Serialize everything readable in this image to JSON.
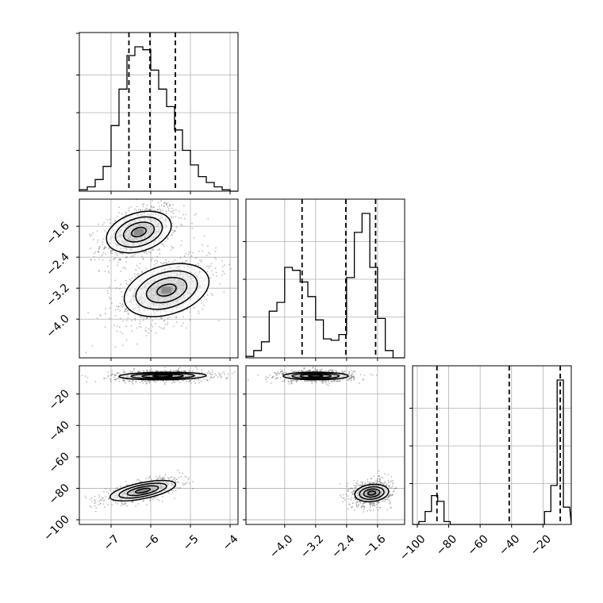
{
  "chart_data": {
    "type": "corner",
    "parameters": [
      {
        "name": "",
        "range": [
          -7.8,
          -3.8
        ],
        "ticks": [
          -7,
          -6,
          -5,
          -4
        ],
        "tick_labels": [
          "−7",
          "−6",
          "−5",
          "−4"
        ],
        "quantiles": [
          -6.55,
          -6.02,
          -5.38
        ]
      },
      {
        "name": "",
        "range": [
          -5.0,
          -0.9
        ],
        "ticks": [
          -4.0,
          -3.2,
          -2.4,
          -1.6
        ],
        "tick_labels": [
          "−4.0",
          "−3.2",
          "−2.4",
          "−1.6"
        ],
        "quantiles": [
          -3.55,
          -2.42,
          -1.65
        ]
      },
      {
        "name": "",
        "range": [
          -103,
          -2
        ],
        "ticks": [
          -100,
          -80,
          -60,
          -40,
          -20
        ],
        "tick_labels": [
          "−100",
          "−80",
          "−60",
          "−40",
          "−20"
        ],
        "quantiles": [
          -87.5,
          -41.5,
          -9.0
        ]
      }
    ],
    "histograms": [
      {
        "param": 0,
        "bin_centers": [
          -7.7,
          -7.5,
          -7.3,
          -7.1,
          -6.9,
          -6.7,
          -6.5,
          -6.3,
          -6.1,
          -5.9,
          -5.7,
          -5.5,
          -5.3,
          -5.1,
          -4.9,
          -4.7,
          -4.5,
          -4.3,
          -4.1,
          -3.9
        ],
        "counts": [
          1,
          3,
          8,
          17,
          45,
          70,
          93,
          99,
          97,
          83,
          70,
          58,
          42,
          28,
          18,
          10,
          6,
          3,
          1,
          0
        ]
      },
      {
        "param": 1,
        "bin_centers": [
          -4.9,
          -4.7,
          -4.5,
          -4.3,
          -4.1,
          -3.9,
          -3.7,
          -3.5,
          -3.3,
          -3.1,
          -2.9,
          -2.7,
          -2.5,
          -2.3,
          -2.1,
          -1.9,
          -1.7,
          -1.5,
          -1.3,
          -1.1
        ],
        "counts": [
          1,
          5,
          11,
          32,
          38,
          62,
          60,
          52,
          42,
          26,
          13,
          12,
          16,
          55,
          86,
          99,
          62,
          27,
          5,
          0
        ]
      },
      {
        "param": 2,
        "bin_centers": [
          -101,
          -97,
          -93,
          -89,
          -85,
          -81,
          -77,
          -73,
          -69,
          -65,
          -61,
          -57,
          -53,
          -49,
          -45,
          -41,
          -37,
          -33,
          -29,
          -25,
          -21,
          -17,
          -13,
          -9,
          -5
        ],
        "counts": [
          0,
          2,
          9,
          20,
          16,
          2,
          0,
          0,
          0,
          0,
          0,
          0,
          0,
          0,
          0,
          0,
          0,
          0,
          0,
          0,
          0,
          9,
          27,
          100,
          12
        ]
      }
    ],
    "joint": [
      {
        "x": 0,
        "y": 1,
        "clusters": [
          {
            "center": [
              -6.3,
              -1.75
            ],
            "spread": [
              0.42,
              0.33
            ],
            "corr": 0.45,
            "weight": 1.0
          },
          {
            "center": [
              -5.6,
              -3.25
            ],
            "spread": [
              0.55,
              0.42
            ],
            "corr": 0.45,
            "weight": 1.0
          }
        ]
      },
      {
        "x": 0,
        "y": 2,
        "clusters": [
          {
            "center": [
              -5.7,
              -8.5
            ],
            "spread": [
              0.55,
              1.6
            ],
            "corr": 0.1,
            "weight": 1.0
          },
          {
            "center": [
              -6.2,
              -81.5
            ],
            "spread": [
              0.42,
              3.4
            ],
            "corr": 0.7,
            "weight": 1.0
          }
        ]
      },
      {
        "x": 1,
        "y": 2,
        "clusters": [
          {
            "center": [
              -3.2,
              -8.5
            ],
            "spread": [
              0.42,
              1.6
            ],
            "corr": 0.0,
            "weight": 1.0
          },
          {
            "center": [
              -1.75,
              -83.0
            ],
            "spread": [
              0.22,
              3.6
            ],
            "corr": 0.2,
            "weight": 1.0
          }
        ]
      }
    ],
    "grid": true,
    "colors": {
      "lines": "#000000",
      "grid": "#b0b0b0",
      "points": "#444444"
    }
  }
}
